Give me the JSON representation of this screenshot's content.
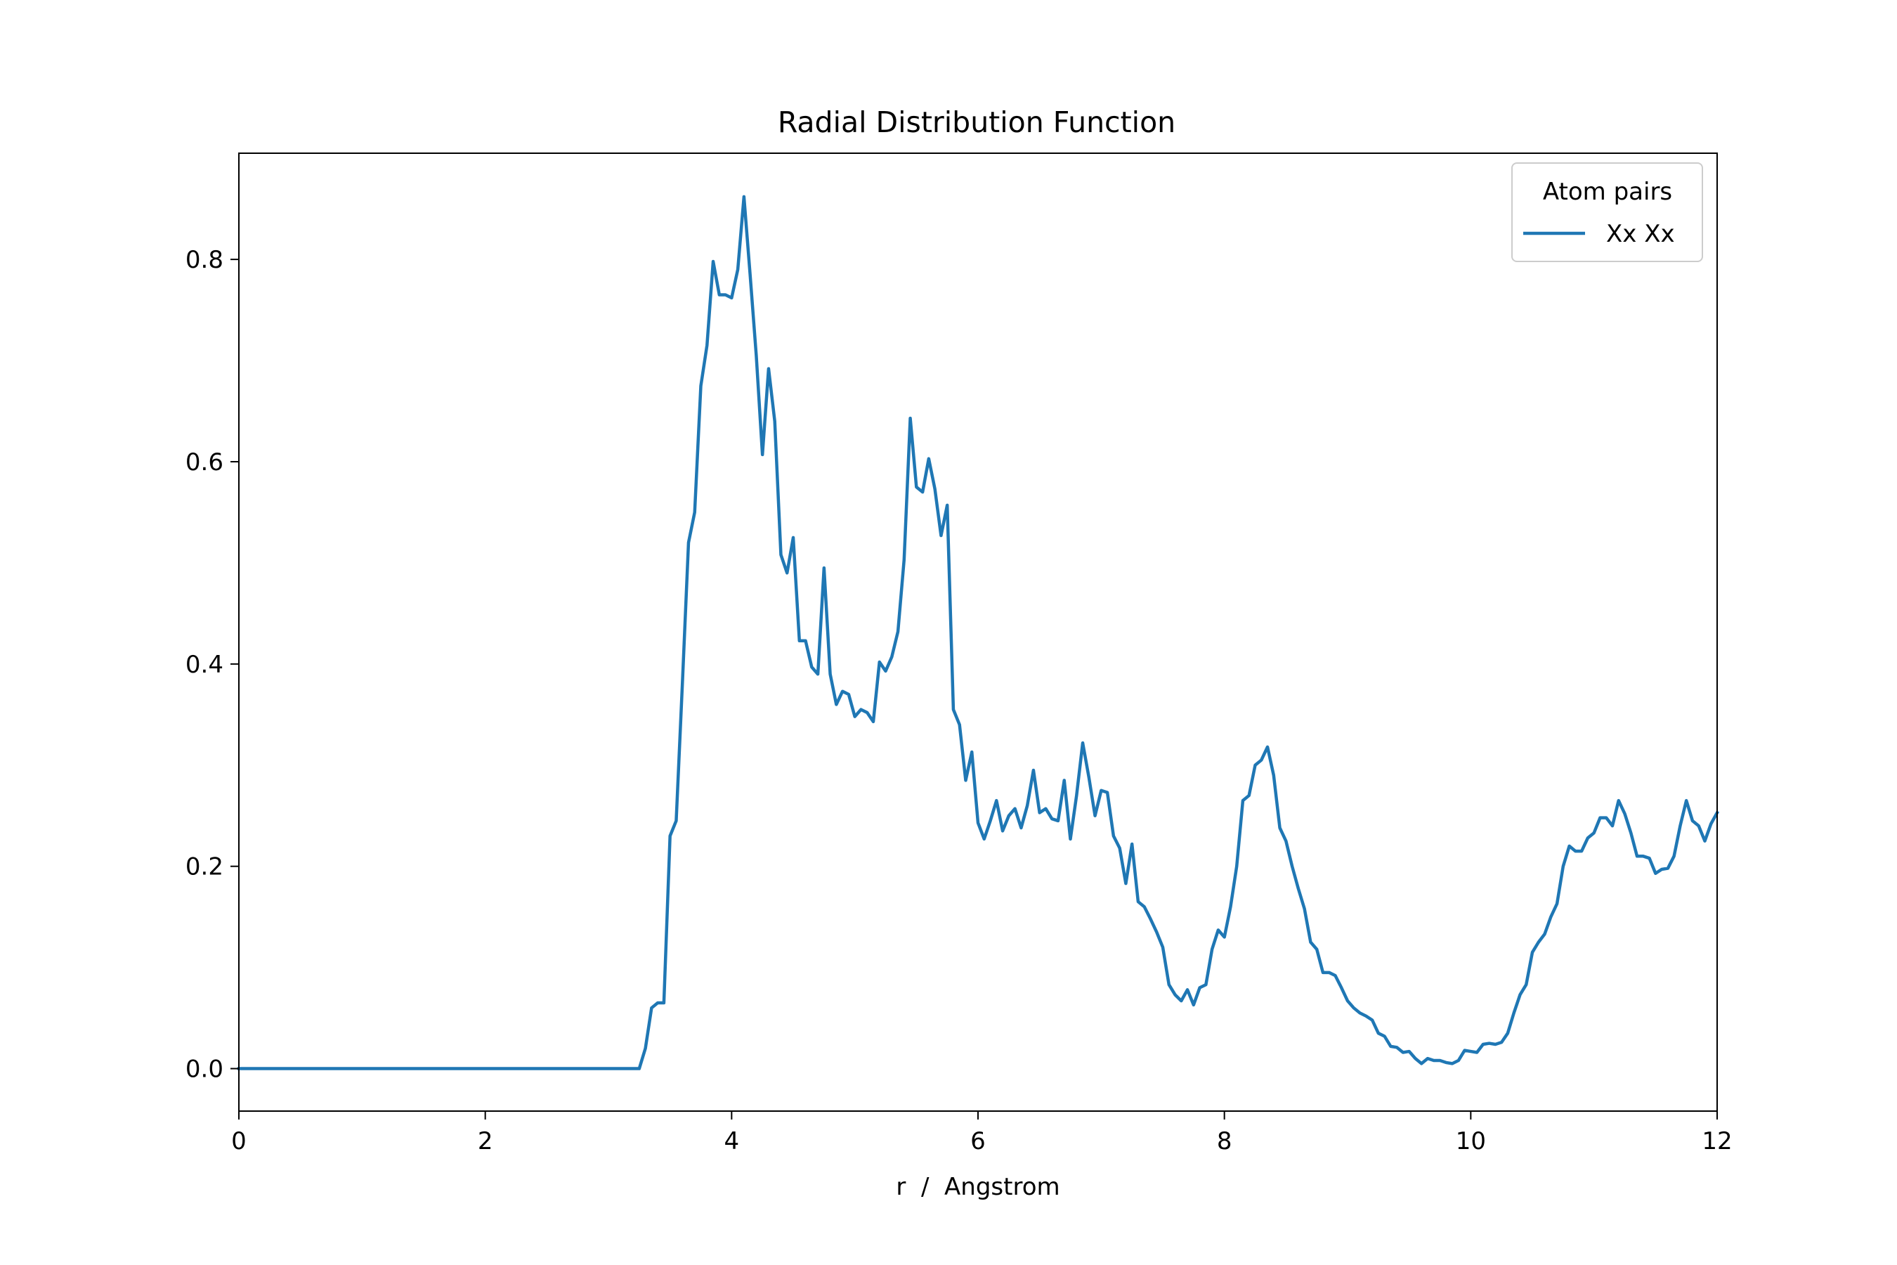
{
  "chart_data": {
    "type": "line",
    "title": "Radial Distribution Function",
    "xlabel": "r  /  Angstrom",
    "ylabel": "",
    "xlim": [
      0,
      12
    ],
    "ylim": [
      -0.042,
      0.905
    ],
    "xticks": [
      0,
      2,
      4,
      6,
      8,
      10,
      12
    ],
    "xtick_labels": [
      "0",
      "2",
      "4",
      "6",
      "8",
      "10",
      "12"
    ],
    "yticks": [
      0.0,
      0.2,
      0.4,
      0.6,
      0.8
    ],
    "ytick_labels": [
      "0.0",
      "0.2",
      "0.4",
      "0.6",
      "0.8"
    ],
    "grid": false,
    "legend": {
      "title": "Atom pairs",
      "placement": "top-right"
    },
    "series": [
      {
        "name": "Xx Xx",
        "color": "#1f77b4",
        "x": [
          0.0,
          3.25,
          3.3,
          3.35,
          3.4,
          3.45,
          3.5,
          3.55,
          3.6,
          3.65,
          3.7,
          3.75,
          3.8,
          3.85,
          3.9,
          3.95,
          4.0,
          4.05,
          4.1,
          4.15,
          4.2,
          4.25,
          4.3,
          4.35,
          4.4,
          4.45,
          4.5,
          4.55,
          4.6,
          4.65,
          4.7,
          4.75,
          4.8,
          4.85,
          4.9,
          4.95,
          5.0,
          5.05,
          5.1,
          5.15,
          5.2,
          5.25,
          5.3,
          5.35,
          5.4,
          5.45,
          5.5,
          5.55,
          5.6,
          5.65,
          5.7,
          5.75,
          5.8,
          5.85,
          5.9,
          5.95,
          6.0,
          6.05,
          6.1,
          6.15,
          6.2,
          6.25,
          6.3,
          6.35,
          6.4,
          6.45,
          6.5,
          6.55,
          6.6,
          6.65,
          6.7,
          6.75,
          6.8,
          6.85,
          6.9,
          6.95,
          7.0,
          7.05,
          7.1,
          7.15,
          7.2,
          7.25,
          7.3,
          7.35,
          7.4,
          7.45,
          7.5,
          7.55,
          7.6,
          7.65,
          7.7,
          7.75,
          7.8,
          7.85,
          7.9,
          7.95,
          8.0,
          8.05,
          8.1,
          8.15,
          8.2,
          8.25,
          8.3,
          8.35,
          8.4,
          8.45,
          8.5,
          8.55,
          8.6,
          8.65,
          8.7,
          8.75,
          8.8,
          8.85,
          8.9,
          8.95,
          9.0,
          9.05,
          9.1,
          9.15,
          9.2,
          9.25,
          9.3,
          9.35,
          9.4,
          9.45,
          9.5,
          9.55,
          9.6,
          9.65,
          9.7,
          9.75,
          9.8,
          9.85,
          9.9,
          9.95,
          10.0,
          10.05,
          10.1,
          10.15,
          10.2,
          10.25,
          10.3,
          10.35,
          10.4,
          10.45,
          10.5,
          10.55,
          10.6,
          10.65,
          10.7,
          10.75,
          10.8,
          10.85,
          10.9,
          10.95,
          11.0,
          11.05,
          11.1,
          11.15,
          11.2,
          11.25,
          11.3,
          11.35,
          11.4,
          11.45,
          11.5,
          11.55,
          11.6,
          11.65,
          11.7,
          11.75,
          11.8,
          11.85,
          11.9,
          11.95,
          12.0
        ],
        "y": [
          0.0,
          0.0,
          0.02,
          0.06,
          0.065,
          0.065,
          0.23,
          0.245,
          0.38,
          0.52,
          0.55,
          0.675,
          0.715,
          0.798,
          0.765,
          0.765,
          0.762,
          0.79,
          0.862,
          0.785,
          0.705,
          0.607,
          0.692,
          0.64,
          0.508,
          0.49,
          0.525,
          0.423,
          0.423,
          0.397,
          0.39,
          0.495,
          0.39,
          0.36,
          0.373,
          0.37,
          0.348,
          0.355,
          0.352,
          0.343,
          0.402,
          0.393,
          0.407,
          0.432,
          0.503,
          0.643,
          0.575,
          0.57,
          0.603,
          0.573,
          0.527,
          0.557,
          0.355,
          0.34,
          0.285,
          0.313,
          0.243,
          0.227,
          0.245,
          0.265,
          0.235,
          0.25,
          0.257,
          0.238,
          0.26,
          0.295,
          0.253,
          0.257,
          0.247,
          0.245,
          0.285,
          0.227,
          0.27,
          0.322,
          0.288,
          0.25,
          0.275,
          0.273,
          0.23,
          0.218,
          0.183,
          0.222,
          0.165,
          0.16,
          0.148,
          0.135,
          0.12,
          0.083,
          0.073,
          0.067,
          0.078,
          0.063,
          0.08,
          0.083,
          0.118,
          0.137,
          0.13,
          0.16,
          0.2,
          0.265,
          0.27,
          0.3,
          0.305,
          0.318,
          0.29,
          0.238,
          0.225,
          0.2,
          0.178,
          0.158,
          0.125,
          0.118,
          0.095,
          0.095,
          0.092,
          0.08,
          0.067,
          0.06,
          0.055,
          0.052,
          0.048,
          0.035,
          0.032,
          0.022,
          0.021,
          0.016,
          0.017,
          0.01,
          0.005,
          0.01,
          0.008,
          0.008,
          0.006,
          0.005,
          0.008,
          0.018,
          0.017,
          0.016,
          0.024,
          0.025,
          0.024,
          0.026,
          0.035,
          0.055,
          0.073,
          0.083,
          0.115,
          0.125,
          0.133,
          0.15,
          0.163,
          0.2,
          0.22,
          0.215,
          0.215,
          0.228,
          0.233,
          0.248,
          0.248,
          0.24,
          0.265,
          0.252,
          0.233,
          0.21,
          0.21,
          0.208,
          0.193,
          0.197,
          0.198,
          0.21,
          0.24,
          0.265,
          0.245,
          0.24,
          0.225,
          0.242,
          0.253
        ]
      }
    ]
  }
}
